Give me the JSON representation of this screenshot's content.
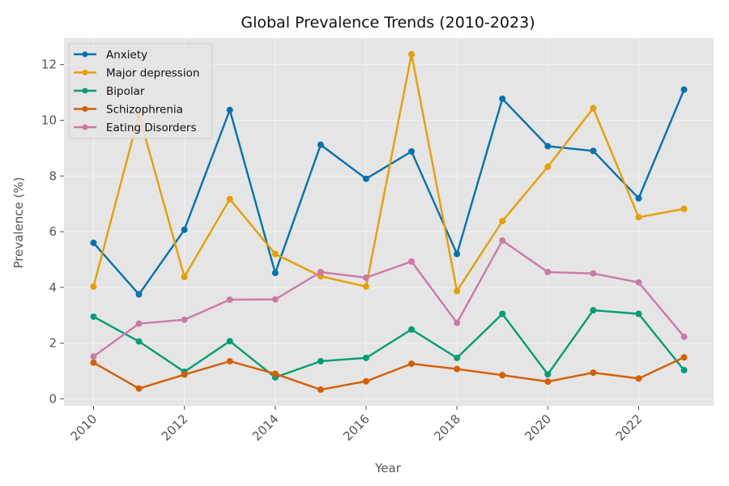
{
  "chart_data": {
    "type": "line",
    "title": "Global Prevalence Trends (2010-2023)",
    "xlabel": "Year",
    "ylabel": "Prevalence (%)",
    "x": [
      2010,
      2011,
      2012,
      2013,
      2014,
      2015,
      2016,
      2017,
      2018,
      2019,
      2020,
      2021,
      2022,
      2023
    ],
    "xticks": [
      2010,
      2012,
      2014,
      2016,
      2018,
      2020,
      2022
    ],
    "yticks": [
      0,
      2,
      4,
      6,
      8,
      10,
      12
    ],
    "xlim": [
      2009.35,
      2023.65
    ],
    "ylim": [
      -0.25,
      12.95
    ],
    "grid": true,
    "legend_position": "top-left",
    "series": [
      {
        "name": "Anxiety",
        "color": "#0072B2",
        "values": [
          5.6,
          3.75,
          6.07,
          10.37,
          4.52,
          9.12,
          7.9,
          8.88,
          5.2,
          10.77,
          9.07,
          8.9,
          7.2,
          11.1
        ]
      },
      {
        "name": "Major depression",
        "color": "#E69F00",
        "values": [
          4.03,
          10.2,
          4.38,
          7.17,
          5.2,
          4.4,
          4.03,
          12.37,
          3.87,
          6.38,
          8.33,
          10.43,
          6.52,
          6.82
        ]
      },
      {
        "name": "Bipolar",
        "color": "#009E73",
        "values": [
          2.95,
          2.06,
          0.97,
          2.07,
          0.77,
          1.35,
          1.47,
          2.49,
          1.47,
          3.05,
          0.88,
          3.18,
          3.05,
          1.03
        ]
      },
      {
        "name": "Schizophrenia",
        "color": "#D55E00",
        "values": [
          1.3,
          0.37,
          0.87,
          1.35,
          0.9,
          0.33,
          0.63,
          1.26,
          1.07,
          0.85,
          0.62,
          0.94,
          0.73,
          1.49
        ]
      },
      {
        "name": "Eating Disorders",
        "color": "#CC79A7",
        "values": [
          1.52,
          2.7,
          2.84,
          3.56,
          3.57,
          4.55,
          4.35,
          4.93,
          2.73,
          5.68,
          4.55,
          4.5,
          4.18,
          2.23
        ]
      }
    ]
  }
}
